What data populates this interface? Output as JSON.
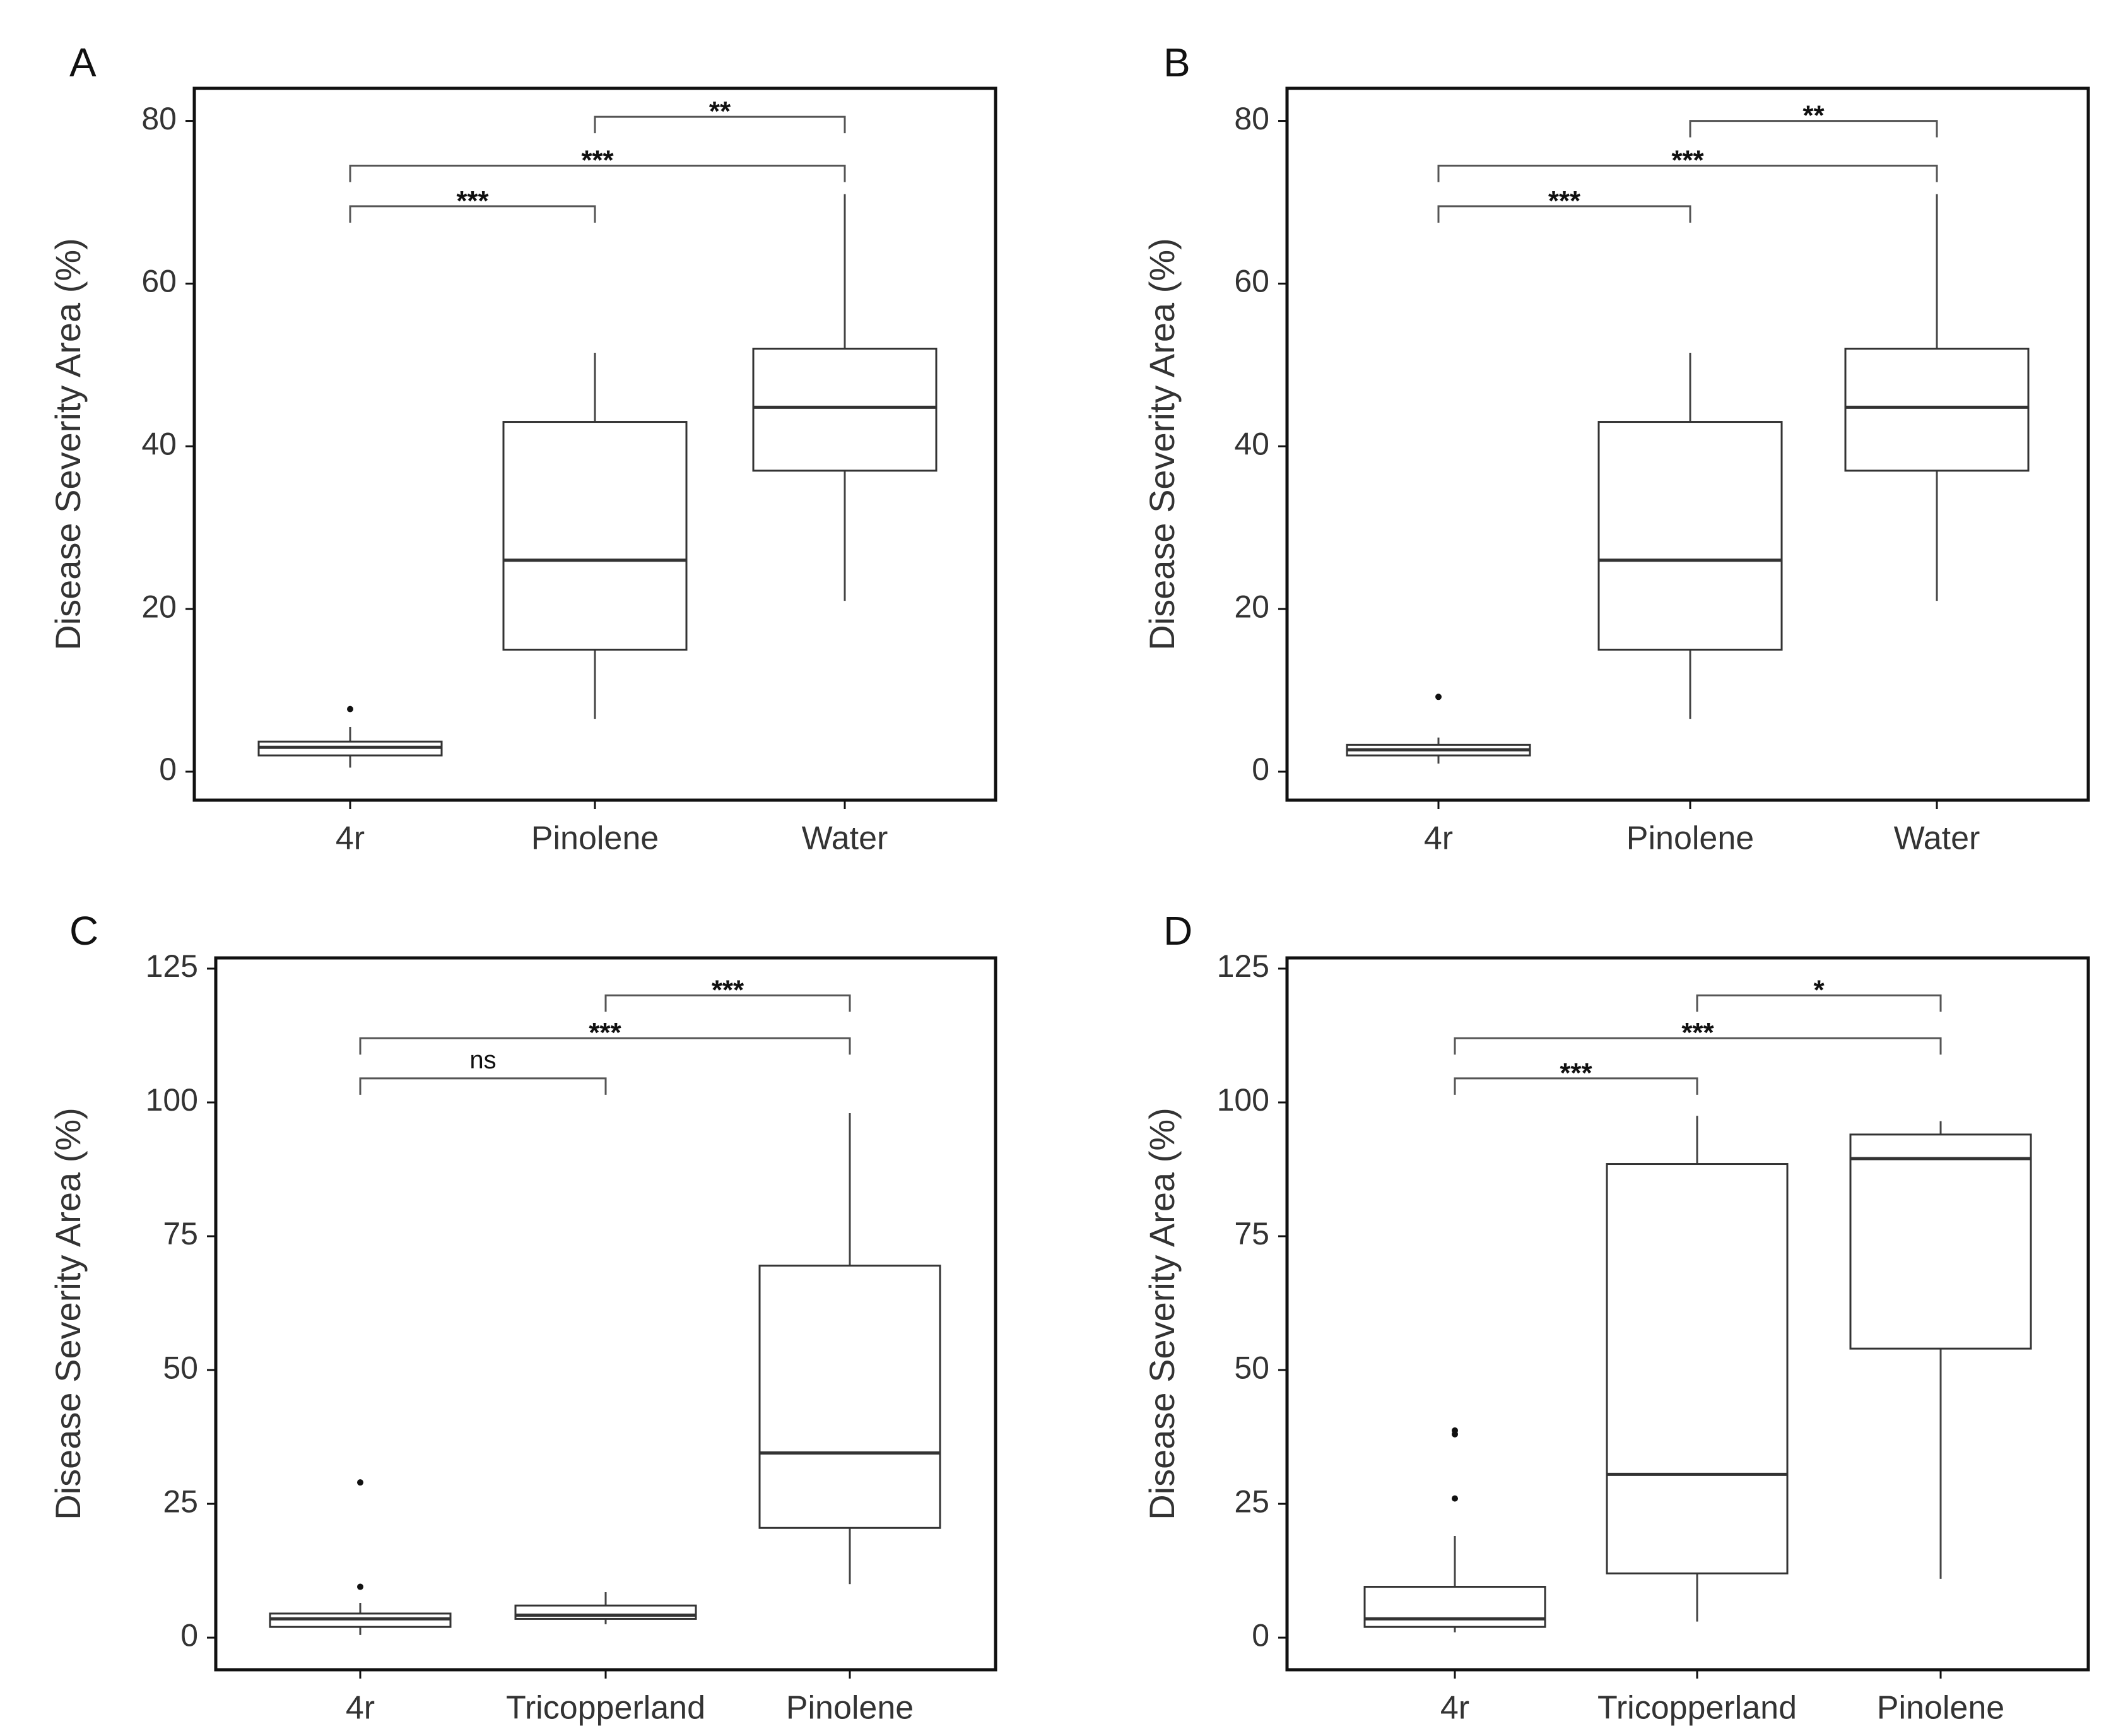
{
  "colors": {
    "frame": "#111111",
    "box": "#333333",
    "whisker": "#444444",
    "bracket": "#555555",
    "text": "#111111",
    "tick_text": "#333333",
    "outlier": "#111111",
    "background": "#ffffff"
  },
  "chart_data": [
    {
      "panel": "A",
      "type": "boxplot",
      "ylabel": "Disease Severity Area (%)",
      "xlabel": "",
      "ylim": [
        -3.5,
        84
      ],
      "yticks": [
        0,
        20,
        40,
        60,
        80
      ],
      "categories": [
        "4r",
        "Pinolene",
        "Water"
      ],
      "boxes": [
        {
          "category": "4r",
          "whisker_low": 0.5,
          "q1": 2,
          "median": 3,
          "q3": 3.7,
          "whisker_high": 5.5,
          "outliers": [
            7.7
          ]
        },
        {
          "category": "Pinolene",
          "whisker_low": 6.5,
          "q1": 15,
          "median": 26,
          "q3": 43,
          "whisker_high": 51.5,
          "outliers": []
        },
        {
          "category": "Water",
          "whisker_low": 21,
          "q1": 37,
          "median": 44.8,
          "q3": 52,
          "whisker_high": 71,
          "outliers": []
        }
      ],
      "comparisons": [
        {
          "from": "4r",
          "to": "Pinolene",
          "label": "***",
          "y": 69.5
        },
        {
          "from": "4r",
          "to": "Water",
          "label": "***",
          "y": 74.5
        },
        {
          "from": "Pinolene",
          "to": "Water",
          "label": "**",
          "y": 80.5
        }
      ]
    },
    {
      "panel": "B",
      "type": "boxplot",
      "ylabel": "Disease Severity Area (%)",
      "xlabel": "",
      "ylim": [
        -3.5,
        84
      ],
      "yticks": [
        0,
        20,
        40,
        60,
        80
      ],
      "categories": [
        "4r",
        "Pinolene",
        "Water"
      ],
      "boxes": [
        {
          "category": "4r",
          "whisker_low": 1,
          "q1": 2,
          "median": 2.7,
          "q3": 3.3,
          "whisker_high": 4.2,
          "outliers": [
            9.2
          ]
        },
        {
          "category": "Pinolene",
          "whisker_low": 6.5,
          "q1": 15,
          "median": 26,
          "q3": 43,
          "whisker_high": 51.5,
          "outliers": []
        },
        {
          "category": "Water",
          "whisker_low": 21,
          "q1": 37,
          "median": 44.8,
          "q3": 52,
          "whisker_high": 71,
          "outliers": []
        }
      ],
      "comparisons": [
        {
          "from": "4r",
          "to": "Pinolene",
          "label": "***",
          "y": 69.5
        },
        {
          "from": "4r",
          "to": "Water",
          "label": "***",
          "y": 74.5
        },
        {
          "from": "Pinolene",
          "to": "Water",
          "label": "**",
          "y": 80
        }
      ]
    },
    {
      "panel": "C",
      "type": "boxplot",
      "ylabel": "Disease Severity Area (%)",
      "xlabel": "",
      "ylim": [
        -6,
        127
      ],
      "yticks": [
        0,
        25,
        50,
        75,
        100,
        125
      ],
      "categories": [
        "4r",
        "Tricopperland",
        "Pinolene"
      ],
      "boxes": [
        {
          "category": "4r",
          "whisker_low": 0.5,
          "q1": 2,
          "median": 3.5,
          "q3": 4.5,
          "whisker_high": 6.5,
          "outliers": [
            9.5,
            29
          ]
        },
        {
          "category": "Tricopperland",
          "whisker_low": 2.5,
          "q1": 3.5,
          "median": 4.2,
          "q3": 6,
          "whisker_high": 8.5,
          "outliers": []
        },
        {
          "category": "Pinolene",
          "whisker_low": 10,
          "q1": 20.5,
          "median": 34.5,
          "q3": 69.5,
          "whisker_high": 98,
          "outliers": []
        }
      ],
      "comparisons": [
        {
          "from": "4r",
          "to": "Tricopperland",
          "label": "ns",
          "y": 104.5
        },
        {
          "from": "4r",
          "to": "Pinolene",
          "label": "***",
          "y": 112
        },
        {
          "from": "Tricopperland",
          "to": "Pinolene",
          "label": "***",
          "y": 120
        }
      ]
    },
    {
      "panel": "D",
      "type": "boxplot",
      "ylabel": "Disease Severity Area (%)",
      "xlabel": "",
      "ylim": [
        -6,
        127
      ],
      "yticks": [
        0,
        25,
        50,
        75,
        100,
        125
      ],
      "categories": [
        "4r",
        "Tricopperland",
        "Pinolene"
      ],
      "boxes": [
        {
          "category": "4r",
          "whisker_low": 1,
          "q1": 2,
          "median": 3.5,
          "q3": 9.5,
          "whisker_high": 19,
          "outliers": [
            26,
            38,
            38.7
          ]
        },
        {
          "category": "Tricopperland",
          "whisker_low": 3,
          "q1": 12,
          "median": 30.5,
          "q3": 88.5,
          "whisker_high": 97.5,
          "outliers": []
        },
        {
          "category": "Pinolene",
          "whisker_low": 11,
          "q1": 54,
          "median": 89.5,
          "q3": 94,
          "whisker_high": 96.5,
          "outliers": []
        }
      ],
      "comparisons": [
        {
          "from": "4r",
          "to": "Tricopperland",
          "label": "***",
          "y": 104.5
        },
        {
          "from": "4r",
          "to": "Pinolene",
          "label": "***",
          "y": 112
        },
        {
          "from": "Tricopperland",
          "to": "Pinolene",
          "label": "*",
          "y": 120
        }
      ]
    }
  ]
}
